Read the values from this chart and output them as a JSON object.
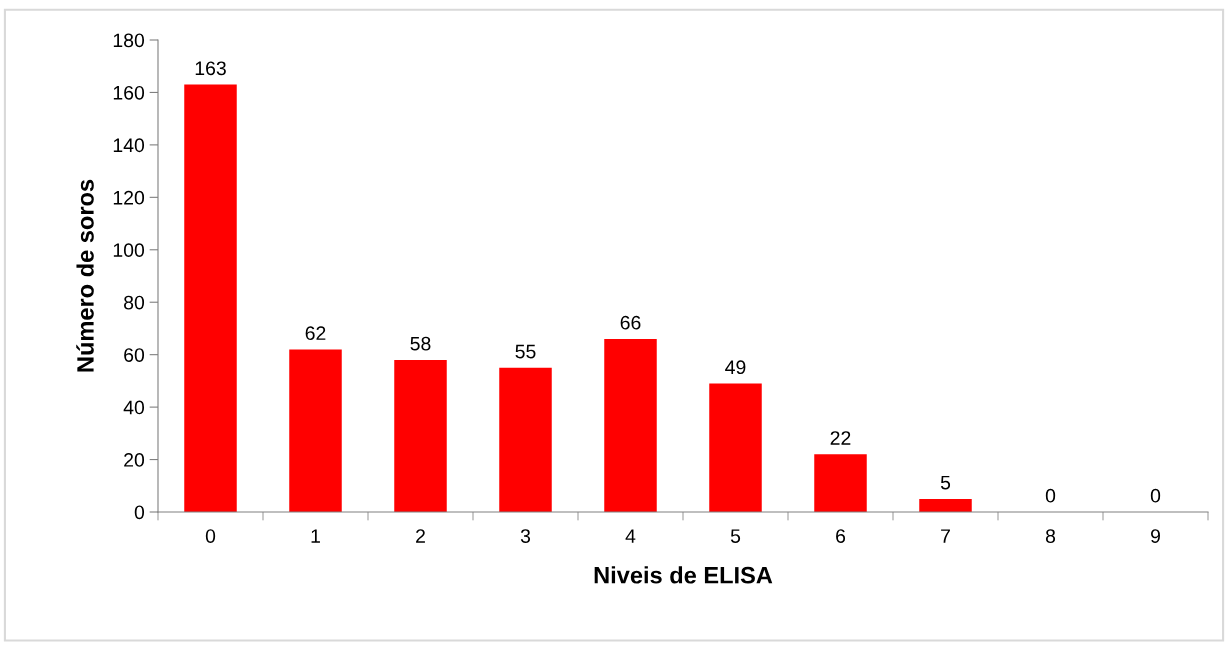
{
  "chart_data": {
    "type": "bar",
    "xlabel": "Niveis de ELISA",
    "ylabel": "Número de soros",
    "categories": [
      "0",
      "1",
      "2",
      "3",
      "4",
      "5",
      "6",
      "7",
      "8",
      "9"
    ],
    "values": [
      163,
      62,
      58,
      55,
      66,
      49,
      22,
      5,
      0,
      0
    ],
    "color": "#ff0000",
    "ylim": [
      0,
      180
    ],
    "yticks": [
      0,
      20,
      40,
      60,
      80,
      100,
      120,
      140,
      160,
      180
    ],
    "grid": false,
    "legend": false,
    "data_labels": true
  }
}
